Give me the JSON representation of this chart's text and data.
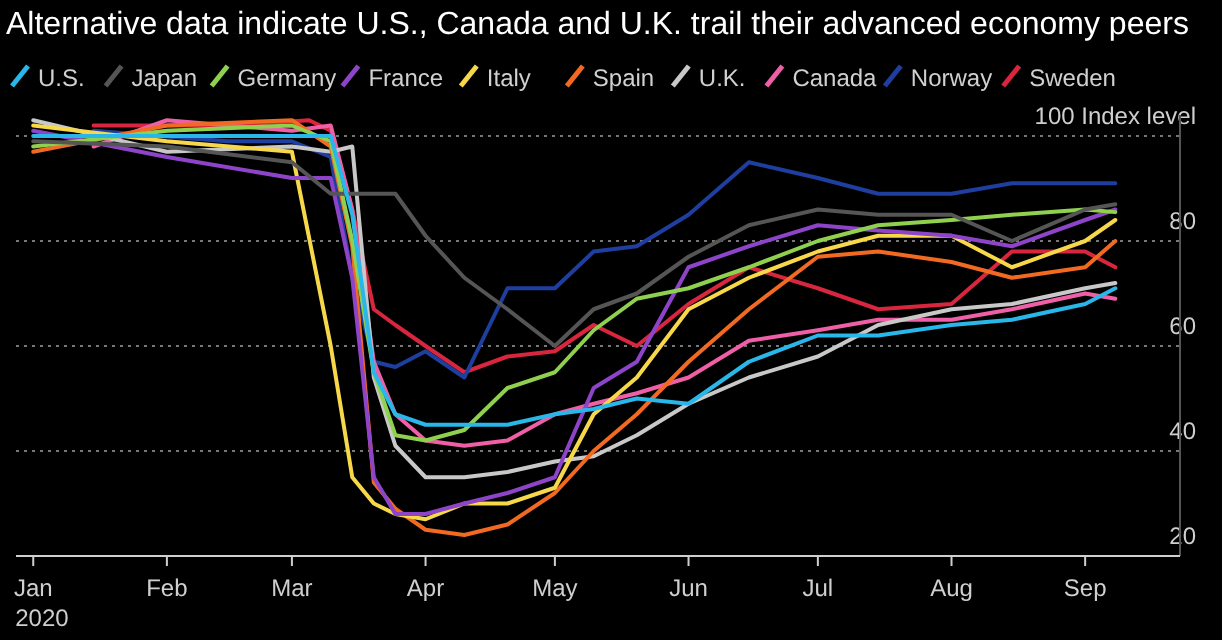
{
  "chart_data": {
    "type": "line",
    "title": "Alternative data indicate U.S., Canada and U.K. trail their advanced economy peers",
    "series": [
      {
        "name": "U.S.",
        "color": "#29b6e8",
        "x": [
          "2020-01-01",
          "2020-02-01",
          "2020-03-01",
          "2020-03-10",
          "2020-03-15",
          "2020-03-20",
          "2020-03-25",
          "2020-04-01",
          "2020-04-10",
          "2020-04-20",
          "2020-05-01",
          "2020-05-10",
          "2020-05-20",
          "2020-06-01",
          "2020-06-15",
          "2020-07-01",
          "2020-07-15",
          "2020-08-01",
          "2020-08-15",
          "2020-09-01",
          "2020-09-08"
        ],
        "values": [
          100,
          100,
          100,
          100,
          85,
          55,
          47,
          45,
          45,
          45,
          47,
          48,
          50,
          49,
          57,
          62,
          62,
          64,
          65,
          68,
          71
        ]
      },
      {
        "name": "Japan",
        "color": "#555555",
        "x": [
          "2020-01-01",
          "2020-02-01",
          "2020-03-01",
          "2020-03-10",
          "2020-03-15",
          "2020-03-20",
          "2020-03-25",
          "2020-04-01",
          "2020-04-10",
          "2020-04-20",
          "2020-05-01",
          "2020-05-10",
          "2020-05-20",
          "2020-06-01",
          "2020-06-15",
          "2020-07-01",
          "2020-07-15",
          "2020-08-01",
          "2020-08-15",
          "2020-09-01",
          "2020-09-08"
        ],
        "values": [
          99,
          98,
          95,
          89,
          89,
          89,
          89,
          81,
          73,
          67,
          60,
          67,
          70,
          77,
          83,
          86,
          85,
          85,
          80,
          86,
          87
        ]
      },
      {
        "name": "Germany",
        "color": "#8fd14f",
        "x": [
          "2020-01-01",
          "2020-02-01",
          "2020-03-01",
          "2020-03-10",
          "2020-03-15",
          "2020-03-20",
          "2020-03-25",
          "2020-04-01",
          "2020-04-10",
          "2020-04-20",
          "2020-05-01",
          "2020-05-10",
          "2020-05-20",
          "2020-06-01",
          "2020-06-15",
          "2020-07-01",
          "2020-07-15",
          "2020-08-01",
          "2020-08-15",
          "2020-09-01",
          "2020-09-08"
        ],
        "values": [
          98,
          101,
          102,
          99,
          80,
          55,
          43,
          42,
          44,
          52,
          55,
          63,
          69,
          71,
          75,
          80,
          83,
          84,
          85,
          86,
          85.5
        ]
      },
      {
        "name": "France",
        "color": "#8e44c9",
        "x": [
          "2020-01-01",
          "2020-02-01",
          "2020-03-01",
          "2020-03-10",
          "2020-03-15",
          "2020-03-20",
          "2020-03-25",
          "2020-04-01",
          "2020-04-10",
          "2020-04-20",
          "2020-05-01",
          "2020-05-10",
          "2020-05-20",
          "2020-06-01",
          "2020-06-15",
          "2020-07-01",
          "2020-07-15",
          "2020-08-01",
          "2020-08-15",
          "2020-09-01",
          "2020-09-08"
        ],
        "values": [
          101,
          96,
          92,
          92,
          73,
          35,
          28,
          28,
          30,
          32,
          35,
          52,
          57,
          75,
          79,
          83,
          82,
          81,
          79,
          84,
          86
        ]
      },
      {
        "name": "Italy",
        "color": "#f7d84a",
        "x": [
          "2020-01-01",
          "2020-02-01",
          "2020-03-01",
          "2020-03-10",
          "2020-03-15",
          "2020-03-20",
          "2020-03-25",
          "2020-04-01",
          "2020-04-10",
          "2020-04-20",
          "2020-05-01",
          "2020-05-10",
          "2020-05-20",
          "2020-06-01",
          "2020-06-15",
          "2020-07-01",
          "2020-07-15",
          "2020-08-01",
          "2020-08-15",
          "2020-09-01",
          "2020-09-08"
        ],
        "values": [
          102,
          99,
          97,
          60,
          35,
          30,
          28,
          27,
          30,
          30,
          33,
          47,
          54,
          67,
          73,
          78,
          81,
          81,
          75,
          80,
          84
        ]
      },
      {
        "name": "Spain",
        "color": "#f26a21",
        "x": [
          "2020-01-01",
          "2020-02-01",
          "2020-03-01",
          "2020-03-10",
          "2020-03-15",
          "2020-03-20",
          "2020-03-25",
          "2020-04-01",
          "2020-04-10",
          "2020-04-20",
          "2020-05-01",
          "2020-05-10",
          "2020-05-20",
          "2020-06-01",
          "2020-06-15",
          "2020-07-01",
          "2020-07-15",
          "2020-08-01",
          "2020-08-15",
          "2020-09-01",
          "2020-09-08"
        ],
        "values": [
          97,
          102,
          103,
          98,
          79,
          34,
          29,
          25,
          24,
          26,
          32,
          40,
          47,
          57,
          67,
          77,
          78,
          76,
          73,
          75,
          80
        ]
      },
      {
        "name": "U.K.",
        "color": "#c8c8c8",
        "x": [
          "2020-01-01",
          "2020-02-01",
          "2020-03-01",
          "2020-03-10",
          "2020-03-15",
          "2020-03-20",
          "2020-03-25",
          "2020-04-01",
          "2020-04-10",
          "2020-04-20",
          "2020-05-01",
          "2020-05-10",
          "2020-05-20",
          "2020-06-01",
          "2020-06-15",
          "2020-07-01",
          "2020-07-15",
          "2020-08-01",
          "2020-08-15",
          "2020-09-01",
          "2020-09-08"
        ],
        "values": [
          103,
          97,
          98,
          97,
          98,
          54,
          41,
          35,
          35,
          36,
          38,
          39,
          43,
          49,
          54,
          58,
          64,
          67,
          68,
          71,
          72
        ]
      },
      {
        "name": "Canada",
        "color": "#ef5fa7",
        "x": [
          "2020-01-15",
          "2020-02-01",
          "2020-03-01",
          "2020-03-10",
          "2020-03-15",
          "2020-03-20",
          "2020-03-25",
          "2020-04-01",
          "2020-04-10",
          "2020-04-20",
          "2020-05-01",
          "2020-05-10",
          "2020-05-20",
          "2020-06-01",
          "2020-06-15",
          "2020-07-01",
          "2020-07-15",
          "2020-08-01",
          "2020-08-15",
          "2020-09-01",
          "2020-09-08"
        ],
        "values": [
          98,
          103,
          101,
          102,
          86,
          57,
          47,
          42,
          41,
          42,
          47,
          49,
          51,
          54,
          61,
          63,
          65,
          65,
          67,
          70,
          69
        ]
      },
      {
        "name": "Norway",
        "color": "#1f3fa0",
        "x": [
          "2020-01-15",
          "2020-02-15",
          "2020-03-01",
          "2020-03-10",
          "2020-03-15",
          "2020-03-20",
          "2020-03-25",
          "2020-04-01",
          "2020-04-10",
          "2020-04-20",
          "2020-05-01",
          "2020-05-10",
          "2020-05-20",
          "2020-06-01",
          "2020-06-15",
          "2020-07-01",
          "2020-07-15",
          "2020-08-01",
          "2020-08-15",
          "2020-09-01",
          "2020-09-08"
        ],
        "values": [
          101,
          99,
          99,
          96,
          73,
          57,
          56,
          59,
          54,
          71,
          71,
          78,
          79,
          85,
          95,
          92,
          89,
          89,
          91,
          91,
          91
        ]
      },
      {
        "name": "Sweden",
        "color": "#d7263d",
        "x": [
          "2020-01-15",
          "2020-02-15",
          "2020-03-05",
          "2020-03-10",
          "2020-03-15",
          "2020-03-20",
          "2020-03-25",
          "2020-04-01",
          "2020-04-10",
          "2020-04-20",
          "2020-05-01",
          "2020-05-10",
          "2020-05-20",
          "2020-06-01",
          "2020-06-15",
          "2020-07-01",
          "2020-07-15",
          "2020-08-01",
          "2020-08-15",
          "2020-09-01",
          "2020-09-08"
        ],
        "values": [
          102,
          102,
          103,
          101,
          86,
          67,
          64,
          60,
          55,
          58,
          59,
          64,
          60,
          68,
          75,
          71,
          67,
          68,
          78,
          78,
          75
        ]
      }
    ],
    "xlim": [
      "2019-12-28",
      "2020-09-23"
    ],
    "xticks": [
      {
        "value": "2020-01-01",
        "label": "Jan\n2020"
      },
      {
        "value": "2020-02-01",
        "label": "Feb"
      },
      {
        "value": "2020-03-01",
        "label": "Mar"
      },
      {
        "value": "2020-04-01",
        "label": "Apr"
      },
      {
        "value": "2020-05-01",
        "label": "May"
      },
      {
        "value": "2020-06-01",
        "label": "Jun"
      },
      {
        "value": "2020-07-01",
        "label": "Jul"
      },
      {
        "value": "2020-08-01",
        "label": "Aug"
      },
      {
        "value": "2020-09-01",
        "label": "Sep"
      }
    ],
    "ylim": [
      20,
      104
    ],
    "yticks": [
      20,
      40,
      60,
      80,
      {
        "value": 100,
        "label": "100 Index level"
      }
    ],
    "grid": "y",
    "legend": "top",
    "line_style": "solid",
    "marker": "none"
  }
}
